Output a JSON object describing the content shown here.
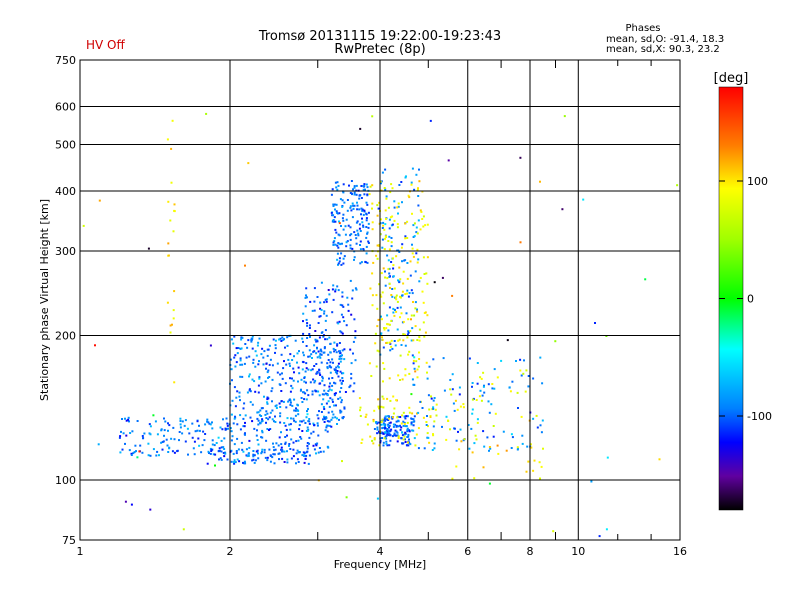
{
  "header": {
    "status": "HV Off",
    "status_color": "#d00000",
    "title": "Tromsø 20131115 19:22:00-19:23:43",
    "subtitle": "RwPretec (8p)",
    "stats_title": "Phases",
    "stats_line1": "mean, sd,O: -91.4, 18.3",
    "stats_line2": "mean, sd,X:  90.3, 23.2"
  },
  "colorbar": {
    "label": "[deg]",
    "range": [
      -180,
      180
    ],
    "ticks": [
      {
        "value": 100,
        "label": "100"
      },
      {
        "value": 0,
        "label": "0"
      },
      {
        "value": -100,
        "label": "-100"
      }
    ]
  },
  "chart_data": {
    "type": "scatter",
    "xlabel": "Frequency [MHz]",
    "ylabel": "Stationary phase Virtual Height [km]",
    "xscale": "log",
    "yscale": "log",
    "xlim": [
      1,
      16
    ],
    "ylim": [
      75,
      750
    ],
    "grid": true,
    "xticks": [
      {
        "value": 1,
        "label": "1"
      },
      {
        "value": 2,
        "label": "2"
      },
      {
        "value": 4,
        "label": "4"
      },
      {
        "value": 6,
        "label": "6"
      },
      {
        "value": 8,
        "label": "8"
      },
      {
        "value": 10,
        "label": "10"
      },
      {
        "value": 16,
        "label": "16"
      }
    ],
    "xminor": [
      3,
      5,
      7,
      9
    ],
    "xminor_top": [
      12,
      14
    ],
    "yticks": [
      {
        "value": 75,
        "label": "75"
      },
      {
        "value": 100,
        "label": "100"
      },
      {
        "value": 200,
        "label": "200"
      },
      {
        "value": 300,
        "label": "300"
      },
      {
        "value": 400,
        "label": "400"
      },
      {
        "value": 500,
        "label": "500"
      },
      {
        "value": 600,
        "label": "600"
      },
      {
        "value": 750,
        "label": "750"
      }
    ],
    "clusters": [
      {
        "trace": "O",
        "x_range": [
          1.2,
          3.2
        ],
        "y_range": [
          112,
          135
        ],
        "phase_mean": -95,
        "count": 280
      },
      {
        "trace": "O",
        "x_range": [
          1.8,
          2.9
        ],
        "y_range": [
          108,
          116
        ],
        "phase_mean": -100,
        "count": 80
      },
      {
        "trace": "O",
        "x_range": [
          2.0,
          3.4
        ],
        "y_range": [
          130,
          200
        ],
        "phase_mean": -95,
        "count": 380
      },
      {
        "trace": "O",
        "x_range": [
          2.8,
          3.6
        ],
        "y_range": [
          150,
          260
        ],
        "phase_mean": -100,
        "count": 150
      },
      {
        "trace": "O",
        "x_range": [
          3.2,
          3.8
        ],
        "y_range": [
          280,
          420
        ],
        "phase_mean": -95,
        "count": 180
      },
      {
        "trace": "O",
        "x_range": [
          3.9,
          4.7
        ],
        "y_range": [
          124,
          136
        ],
        "phase_mean": -100,
        "count": 110
      },
      {
        "trace": "O",
        "x_range": [
          4.0,
          4.6
        ],
        "y_range": [
          118,
          126
        ],
        "phase_mean": -100,
        "count": 50
      },
      {
        "trace": "O",
        "x_range": [
          4.0,
          4.8
        ],
        "y_range": [
          180,
          450
        ],
        "phase_mean": -90,
        "count": 120
      },
      {
        "trace": "X",
        "x_range": [
          3.8,
          5.0
        ],
        "y_range": [
          160,
          420
        ],
        "phase_mean": 90,
        "count": 200
      },
      {
        "trace": "X",
        "x_range": [
          3.6,
          5.2
        ],
        "y_range": [
          118,
          150
        ],
        "phase_mean": 90,
        "count": 70
      },
      {
        "trace": "O",
        "x_range": [
          4.6,
          8.5
        ],
        "y_range": [
          115,
          180
        ],
        "phase_mean": -90,
        "count": 110
      },
      {
        "trace": "X",
        "x_range": [
          5.0,
          8.5
        ],
        "y_range": [
          100,
          170
        ],
        "phase_mean": 90,
        "count": 60
      },
      {
        "trace": "X",
        "x_range": [
          1.5,
          1.55
        ],
        "y_range": [
          150,
          600
        ],
        "phase_mean": 100,
        "count": 20
      },
      {
        "trace": "noise",
        "x_range": [
          1.0,
          16.0
        ],
        "y_range": [
          75,
          600
        ],
        "phase_mean": 0,
        "count": 60
      }
    ]
  }
}
